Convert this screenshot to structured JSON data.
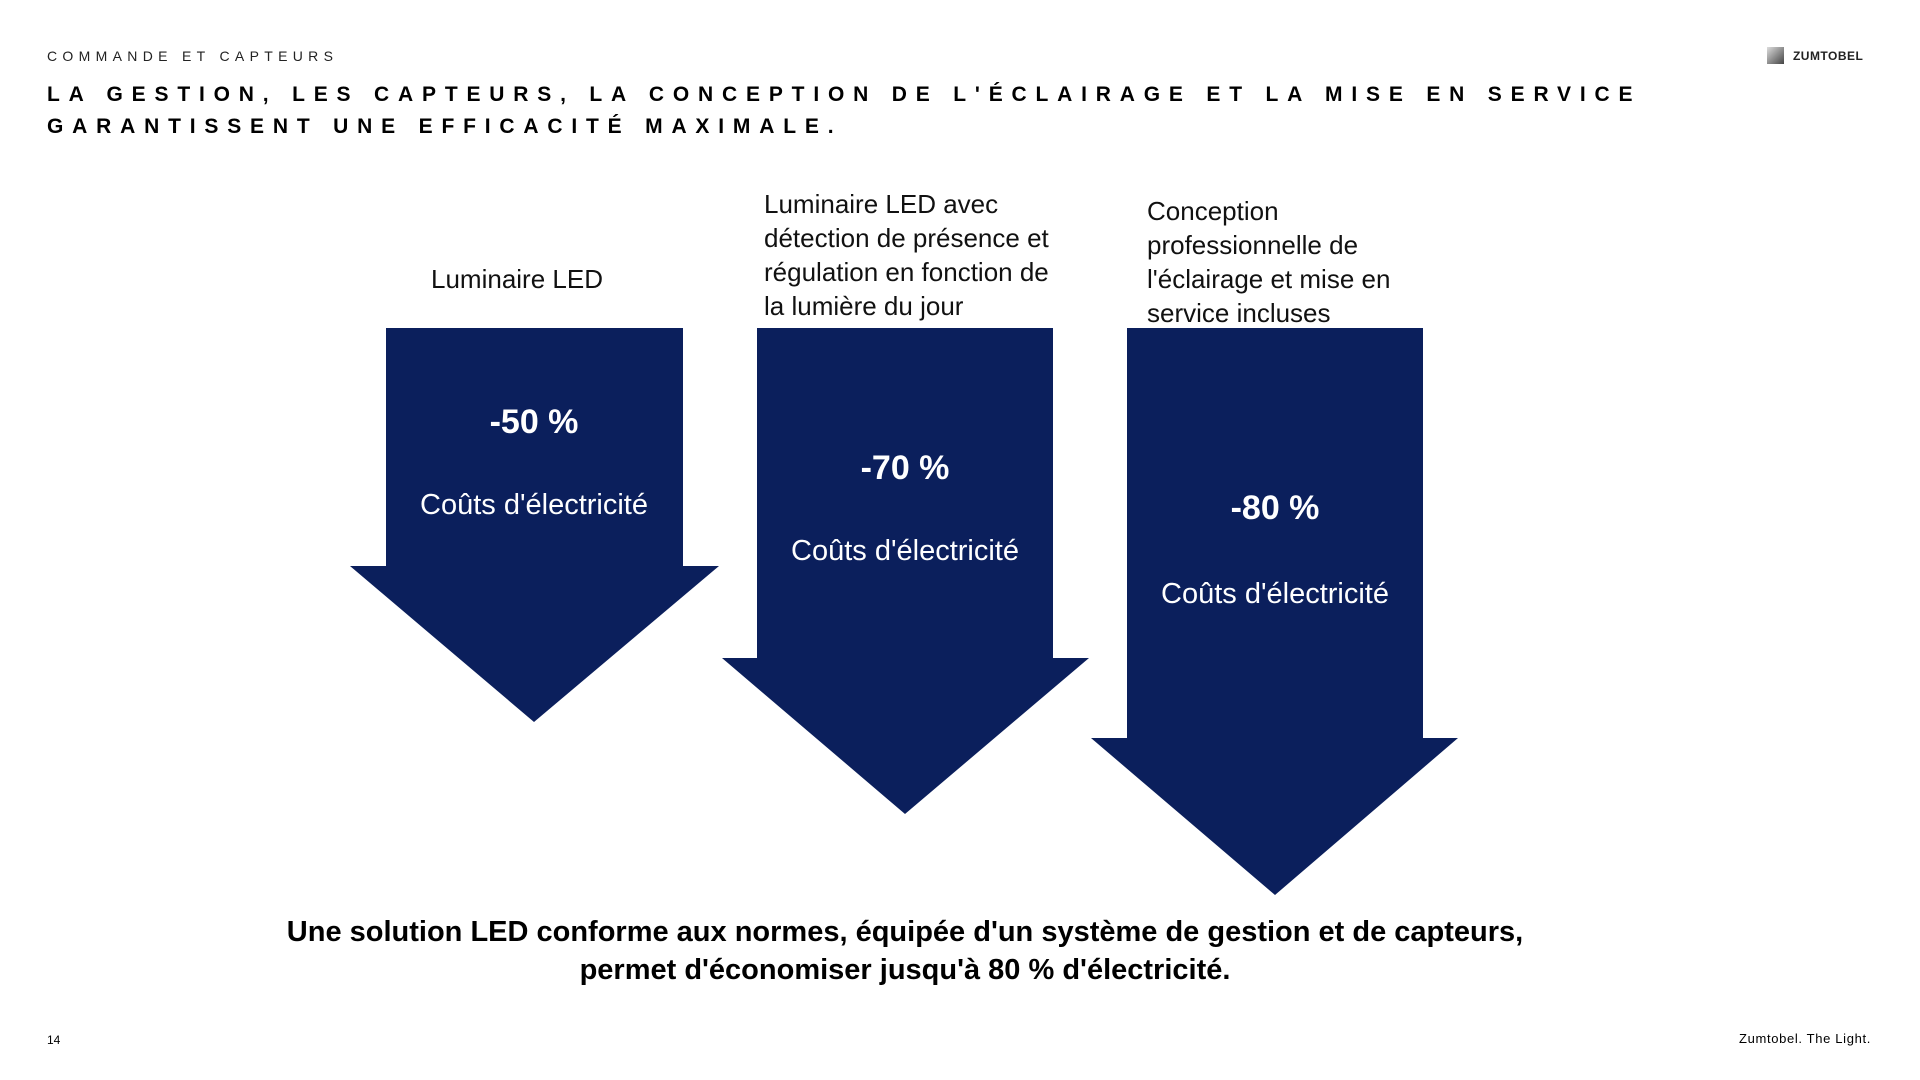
{
  "header": {
    "kicker": "COMMANDE ET CAPTEURS",
    "title_line1": "LA GESTION, LES CAPTEURS, LA CONCEPTION DE L'ÉCLAIRAGE ET LA MISE EN SERVICE",
    "title_line2": "GARANTISSENT UNE EFFICACITÉ MAXIMALE.",
    "logo": "ZUMTOBEL"
  },
  "arrows": [
    {
      "label_lines": [
        "Luminaire LED"
      ],
      "percent": "-50 %",
      "caption": "Coûts d'électricité"
    },
    {
      "label_lines": [
        "Luminaire LED avec",
        "détection de présence et",
        "régulation en fonction de",
        "la lumière du jour"
      ],
      "percent": "-70 %",
      "caption": "Coûts d'électricité"
    },
    {
      "label_lines": [
        "Conception",
        "professionnelle de",
        "l'éclairage et mise en",
        "service incluses"
      ],
      "percent": "-80 %",
      "caption": "Coûts d'électricité"
    }
  ],
  "arrow_color": "#0b1f5c",
  "conclusion_line1": "Une solution LED conforme aux normes, équipée d'un système de gestion et de capteurs,",
  "conclusion_line2": "permet d'économiser jusqu'à 80 % d'électricité.",
  "footer": {
    "page_number": "14",
    "tagline": "Zumtobel. The Light."
  }
}
